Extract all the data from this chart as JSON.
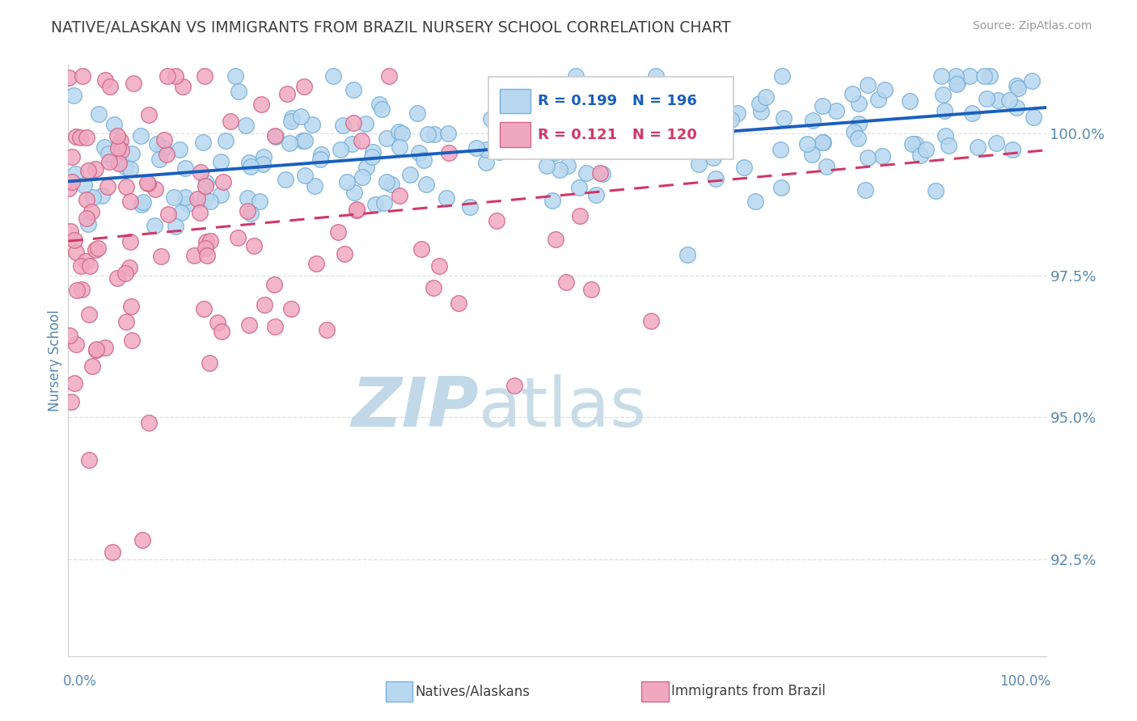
{
  "title": "NATIVE/ALASKAN VS IMMIGRANTS FROM BRAZIL NURSERY SCHOOL CORRELATION CHART",
  "source": "Source: ZipAtlas.com",
  "ylabel": "Nursery School",
  "y_tick_labels": [
    "92.5%",
    "95.0%",
    "97.5%",
    "100.0%"
  ],
  "y_tick_values": [
    92.5,
    95.0,
    97.5,
    100.0
  ],
  "x_range": [
    0,
    100
  ],
  "y_range": [
    90.8,
    101.2
  ],
  "legend_blue_R": "R = 0.199",
  "legend_blue_N": "N = 196",
  "legend_pink_R": "R = 0.121",
  "legend_pink_N": "N = 120",
  "blue_color": "#b8d8f0",
  "blue_edge": "#7ab0d8",
  "blue_line_color": "#1a5fbd",
  "pink_color": "#f0a8c0",
  "pink_edge": "#d06888",
  "pink_line_color": "#d03868",
  "grid_color": "#d0d8e0",
  "axis_color": "#5888b0",
  "title_color": "#404040",
  "watermark_color_zip": "#c0d8e8",
  "watermark_color_atlas": "#c8dce8",
  "legend_r_blue_color": "#1a5fbd",
  "legend_r_pink_color": "#d03868",
  "background": "#ffffff",
  "blue_scatter_seed": 42,
  "pink_scatter_seed": 99,
  "blue_n": 196,
  "pink_n": 120,
  "blue_trend_intercept": 99.15,
  "blue_trend_slope": 0.013,
  "pink_trend_intercept": 98.1,
  "pink_trend_slope": 0.016
}
